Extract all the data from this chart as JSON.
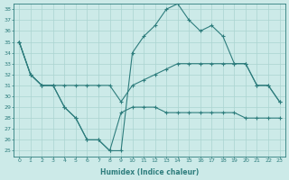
{
  "xlabel": "Humidex (Indice chaleur)",
  "x_ticks": [
    0,
    1,
    2,
    3,
    4,
    5,
    6,
    7,
    8,
    9,
    10,
    11,
    12,
    13,
    14,
    15,
    16,
    17,
    18,
    19,
    20,
    21,
    22,
    23
  ],
  "yticks": [
    25,
    26,
    27,
    28,
    29,
    30,
    31,
    32,
    33,
    34,
    35,
    36,
    37,
    38
  ],
  "ylim": [
    24.5,
    38.5
  ],
  "xlim": [
    -0.5,
    23.5
  ],
  "line1_x": [
    0,
    1,
    2,
    3,
    4,
    5,
    6,
    7,
    8,
    9,
    10,
    11,
    12,
    13,
    14,
    15,
    16,
    17,
    18,
    19,
    20,
    21,
    22,
    23
  ],
  "line1_y": [
    35,
    32,
    31,
    31,
    31,
    31,
    31,
    31,
    31,
    29.5,
    31,
    31.5,
    32,
    32.5,
    33,
    33,
    33,
    33,
    33,
    33,
    33,
    31,
    31,
    29.5
  ],
  "line2_x": [
    0,
    1,
    2,
    3,
    4,
    5,
    6,
    7,
    8,
    9,
    10,
    11,
    12,
    13,
    14,
    15,
    16,
    17,
    18,
    19,
    20,
    21,
    22,
    23
  ],
  "line2_y": [
    35,
    32,
    31,
    31,
    29,
    28,
    26,
    26,
    25,
    25,
    34,
    35.5,
    36.5,
    38,
    38.5,
    37,
    36,
    36.5,
    35.5,
    33,
    33,
    31,
    31,
    29.5
  ],
  "line3_x": [
    0,
    1,
    2,
    3,
    4,
    5,
    6,
    7,
    8,
    9,
    10,
    11,
    12,
    13,
    14,
    15,
    16,
    17,
    18,
    19,
    20,
    21,
    22,
    23
  ],
  "line3_y": [
    35,
    32,
    31,
    31,
    29,
    28,
    26,
    26,
    25,
    28.5,
    29,
    29,
    29,
    28.5,
    28.5,
    28.5,
    28.5,
    28.5,
    28.5,
    28.5,
    28,
    28,
    28,
    28
  ],
  "line_color": "#2e7d7d",
  "bg_color": "#cceae8",
  "grid_color": "#aad4d0",
  "marker": "+",
  "marker_size": 3,
  "marker_lw": 0.8,
  "line_width": 0.8,
  "tick_fontsize": 4.5,
  "xlabel_fontsize": 5.5
}
